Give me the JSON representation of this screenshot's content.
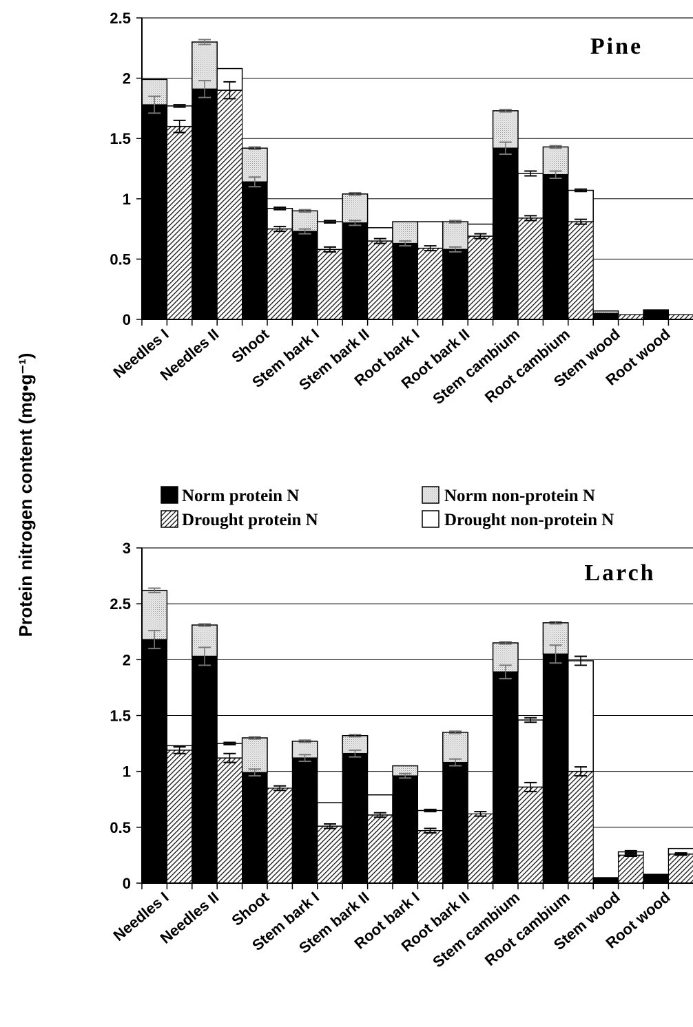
{
  "ylabel": "Protein nitrogen content (mg•g⁻¹)",
  "legend": [
    {
      "key": "norm_protein",
      "label": "Norm protein N"
    },
    {
      "key": "norm_nonprotein",
      "label": "Norm non-protein N"
    },
    {
      "key": "drought_protein",
      "label": "Drought protein N"
    },
    {
      "key": "drought_nonprotein",
      "label": "Drought non-protein N"
    }
  ],
  "colors": {
    "norm_protein": "#000000",
    "norm_nonprotein": "#d9d9d9",
    "drought_protein": "hatched",
    "drought_nonprotein": "#ffffff"
  },
  "chart_data": [
    {
      "type": "bar",
      "title": "Pine",
      "ylim": [
        0,
        2.5
      ],
      "yticks": [
        "0",
        "0.5",
        "1",
        "1.5",
        "2",
        "2.5"
      ],
      "categories": [
        "Needles I",
        "Needles II",
        "Shoot",
        "Stem bark I",
        "Stem bark II",
        "Root bark I",
        "Root bark II",
        "Stem cambium",
        "Root cambium",
        "Stem wood",
        "Root wood"
      ],
      "bars": [
        {
          "group": 0,
          "treat": "norm",
          "protein": 1.78,
          "total": 1.99,
          "err_p": 0.07,
          "err_t": 0.0
        },
        {
          "group": 0,
          "treat": "drought",
          "protein": 1.6,
          "total": 1.77,
          "err_p": 0.05,
          "err_t": 0.01
        },
        {
          "group": 1,
          "treat": "norm",
          "protein": 1.91,
          "total": 2.3,
          "err_p": 0.07,
          "err_t": 0.02
        },
        {
          "group": 1,
          "treat": "drought",
          "protein": 1.9,
          "total": 2.08,
          "err_p": 0.07,
          "err_t": 0.0
        },
        {
          "group": 2,
          "treat": "norm",
          "protein": 1.14,
          "total": 1.42,
          "err_p": 0.04,
          "err_t": 0.01
        },
        {
          "group": 2,
          "treat": "drought",
          "protein": 0.75,
          "total": 0.92,
          "err_p": 0.02,
          "err_t": 0.01
        },
        {
          "group": 3,
          "treat": "norm",
          "protein": 0.73,
          "total": 0.9,
          "err_p": 0.02,
          "err_t": 0.01
        },
        {
          "group": 3,
          "treat": "drought",
          "protein": 0.58,
          "total": 0.81,
          "err_p": 0.02,
          "err_t": 0.01
        },
        {
          "group": 4,
          "treat": "norm",
          "protein": 0.8,
          "total": 1.04,
          "err_p": 0.02,
          "err_t": 0.01
        },
        {
          "group": 4,
          "treat": "drought",
          "protein": 0.65,
          "total": 0.76,
          "err_p": 0.02,
          "err_t": 0.0
        },
        {
          "group": 5,
          "treat": "norm",
          "protein": 0.63,
          "total": 0.81,
          "err_p": 0.02,
          "err_t": 0.0
        },
        {
          "group": 5,
          "treat": "drought",
          "protein": 0.59,
          "total": 0.81,
          "err_p": 0.02,
          "err_t": 0.0
        },
        {
          "group": 6,
          "treat": "norm",
          "protein": 0.58,
          "total": 0.81,
          "err_p": 0.02,
          "err_t": 0.01
        },
        {
          "group": 6,
          "treat": "drought",
          "protein": 0.69,
          "total": 0.79,
          "err_p": 0.02,
          "err_t": 0.0
        },
        {
          "group": 7,
          "treat": "norm",
          "protein": 1.42,
          "total": 1.73,
          "err_p": 0.05,
          "err_t": 0.01
        },
        {
          "group": 7,
          "treat": "drought",
          "protein": 0.84,
          "total": 1.21,
          "err_p": 0.02,
          "err_t": 0.02
        },
        {
          "group": 8,
          "treat": "norm",
          "protein": 1.2,
          "total": 1.43,
          "err_p": 0.03,
          "err_t": 0.01
        },
        {
          "group": 8,
          "treat": "drought",
          "protein": 0.81,
          "total": 1.07,
          "err_p": 0.02,
          "err_t": 0.01
        },
        {
          "group": 9,
          "treat": "norm",
          "protein": 0.05,
          "total": 0.07,
          "err_p": 0.0,
          "err_t": 0.0
        },
        {
          "group": 9,
          "treat": "drought",
          "protein": 0.04,
          "total": 0.04,
          "err_p": 0.0,
          "err_t": 0.0
        },
        {
          "group": 10,
          "treat": "norm",
          "protein": 0.08,
          "total": 0.08,
          "err_p": 0.0,
          "err_t": 0.0
        },
        {
          "group": 10,
          "treat": "drought",
          "protein": 0.04,
          "total": 0.04,
          "err_p": 0.0,
          "err_t": 0.0
        }
      ]
    },
    {
      "type": "bar",
      "title": "Larch",
      "ylim": [
        0,
        3
      ],
      "yticks": [
        "0",
        "0.5",
        "1",
        "1.5",
        "2",
        "2.5",
        "3"
      ],
      "categories": [
        "Needles I",
        "Needles II",
        "Shoot",
        "Stem bark I",
        "Stem bark II",
        "Root bark I",
        "Root bark II",
        "Stem cambium",
        "Root cambium",
        "Stem wood",
        "Root wood"
      ],
      "bars": [
        {
          "group": 0,
          "treat": "norm",
          "protein": 2.18,
          "total": 2.62,
          "err_p": 0.08,
          "err_t": 0.02
        },
        {
          "group": 0,
          "treat": "drought",
          "protein": 1.19,
          "total": 1.23,
          "err_p": 0.03,
          "err_t": 0.0
        },
        {
          "group": 1,
          "treat": "norm",
          "protein": 2.03,
          "total": 2.31,
          "err_p": 0.08,
          "err_t": 0.01
        },
        {
          "group": 1,
          "treat": "drought",
          "protein": 1.12,
          "total": 1.25,
          "err_p": 0.04,
          "err_t": 0.01
        },
        {
          "group": 2,
          "treat": "norm",
          "protein": 0.99,
          "total": 1.3,
          "err_p": 0.03,
          "err_t": 0.01
        },
        {
          "group": 2,
          "treat": "drought",
          "protein": 0.85,
          "total": 0.85,
          "err_p": 0.02,
          "err_t": 0.0
        },
        {
          "group": 3,
          "treat": "norm",
          "protein": 1.12,
          "total": 1.27,
          "err_p": 0.03,
          "err_t": 0.01
        },
        {
          "group": 3,
          "treat": "drought",
          "protein": 0.51,
          "total": 0.72,
          "err_p": 0.02,
          "err_t": 0.0
        },
        {
          "group": 4,
          "treat": "norm",
          "protein": 1.16,
          "total": 1.32,
          "err_p": 0.03,
          "err_t": 0.01
        },
        {
          "group": 4,
          "treat": "drought",
          "protein": 0.61,
          "total": 0.79,
          "err_p": 0.02,
          "err_t": 0.0
        },
        {
          "group": 5,
          "treat": "norm",
          "protein": 0.96,
          "total": 1.05,
          "err_p": 0.02,
          "err_t": 0.0
        },
        {
          "group": 5,
          "treat": "drought",
          "protein": 0.47,
          "total": 0.65,
          "err_p": 0.02,
          "err_t": 0.01
        },
        {
          "group": 6,
          "treat": "norm",
          "protein": 1.08,
          "total": 1.35,
          "err_p": 0.03,
          "err_t": 0.01
        },
        {
          "group": 6,
          "treat": "drought",
          "protein": 0.62,
          "total": 0.62,
          "err_p": 0.02,
          "err_t": 0.0
        },
        {
          "group": 7,
          "treat": "norm",
          "protein": 1.89,
          "total": 2.15,
          "err_p": 0.06,
          "err_t": 0.01
        },
        {
          "group": 7,
          "treat": "drought",
          "protein": 0.86,
          "total": 1.46,
          "err_p": 0.04,
          "err_t": 0.02
        },
        {
          "group": 8,
          "treat": "norm",
          "protein": 2.05,
          "total": 2.33,
          "err_p": 0.08,
          "err_t": 0.01
        },
        {
          "group": 8,
          "treat": "drought",
          "protein": 1.0,
          "total": 1.99,
          "err_p": 0.04,
          "err_t": 0.04
        },
        {
          "group": 9,
          "treat": "norm",
          "protein": 0.05,
          "total": 0.05,
          "err_p": 0.0,
          "err_t": 0.0
        },
        {
          "group": 9,
          "treat": "drought",
          "protein": 0.25,
          "total": 0.28,
          "err_p": 0.01,
          "err_t": 0.01
        },
        {
          "group": 10,
          "treat": "norm",
          "protein": 0.08,
          "total": 0.08,
          "err_p": 0.0,
          "err_t": 0.0
        },
        {
          "group": 10,
          "treat": "drought",
          "protein": 0.26,
          "total": 0.31,
          "err_p": 0.01,
          "err_t": 0.0
        }
      ]
    }
  ]
}
